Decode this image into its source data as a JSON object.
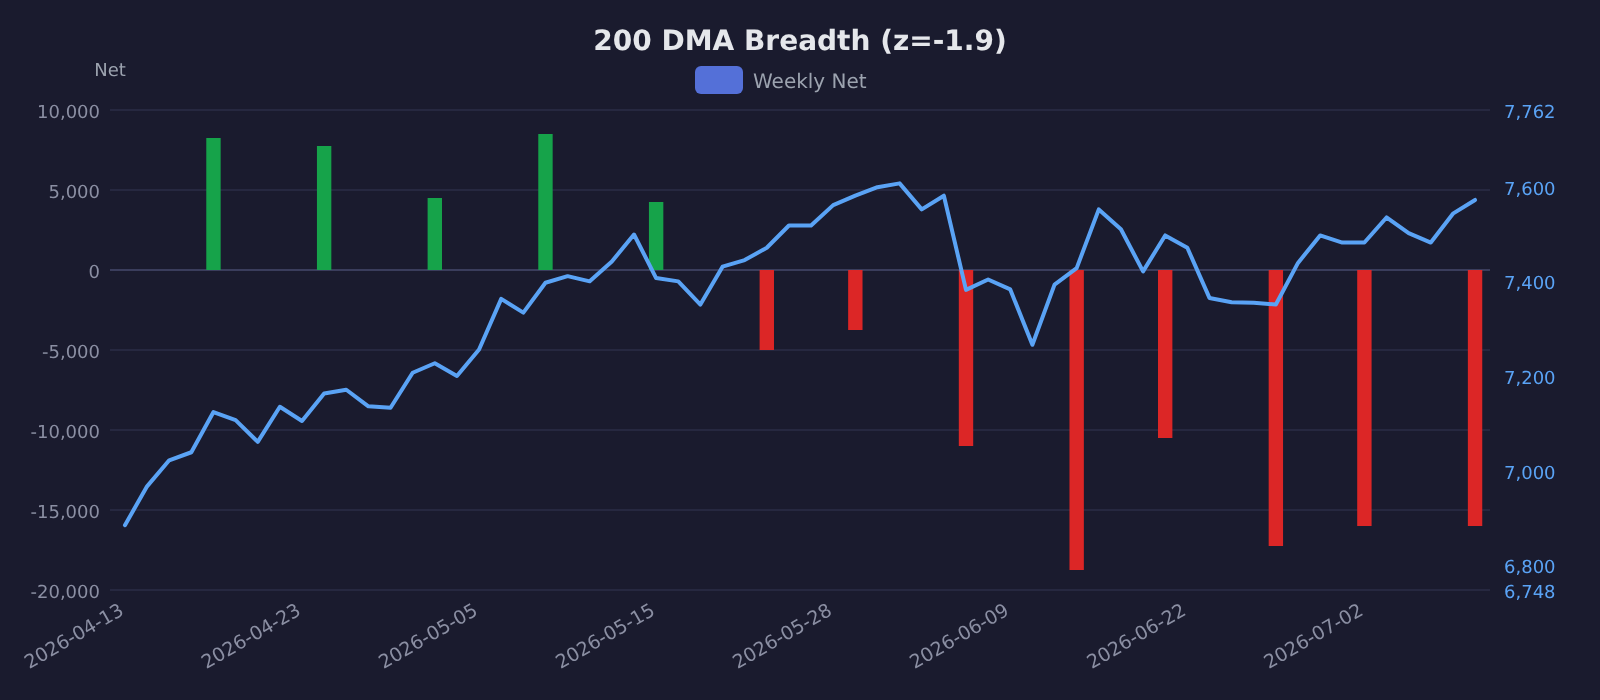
{
  "chart_data": {
    "type": "bar",
    "title": "200 DMA Breadth (z=-1.9)",
    "ylabel": "Net",
    "categories": [
      "2026-04-13",
      null,
      null,
      null,
      null,
      null,
      null,
      null,
      "2026-04-23",
      null,
      null,
      null,
      null,
      null,
      null,
      null,
      "2026-05-05",
      null,
      null,
      null,
      null,
      null,
      null,
      null,
      "2026-05-15",
      null,
      null,
      null,
      null,
      null,
      null,
      null,
      "2026-05-28",
      null,
      null,
      null,
      null,
      null,
      null,
      null,
      "2026-06-09",
      null,
      null,
      null,
      null,
      null,
      null,
      null,
      "2026-06-22",
      null,
      null,
      null,
      null,
      null,
      null,
      null,
      "2026-07-02",
      null,
      null,
      null,
      null,
      null
    ],
    "series": [
      {
        "name": "Weekly Net",
        "color": "#5470d8",
        "colors": [
          null,
          null,
          null,
          null,
          "#16a34a",
          null,
          null,
          null,
          null,
          "#16a34a",
          null,
          null,
          null,
          null,
          "#16a34a",
          null,
          null,
          null,
          null,
          "#16a34a",
          null,
          null,
          null,
          null,
          "#16a34a",
          null,
          null,
          null,
          null,
          "#dc2626",
          null,
          null,
          null,
          "#dc2626",
          null,
          null,
          null,
          null,
          "#dc2626",
          null,
          null,
          null,
          null,
          "#dc2626",
          null,
          null,
          null,
          "#dc2626",
          null,
          null,
          null,
          null,
          "#dc2626",
          null,
          null,
          null,
          "#dc2626",
          null,
          null,
          null,
          null,
          "#dc2626"
        ],
        "values": [
          null,
          null,
          null,
          null,
          8250,
          null,
          null,
          null,
          null,
          7750,
          null,
          null,
          null,
          null,
          4500,
          null,
          null,
          null,
          null,
          8500,
          null,
          null,
          null,
          null,
          4250,
          null,
          null,
          null,
          null,
          -5000,
          null,
          null,
          null,
          -3750,
          null,
          null,
          null,
          null,
          -11000,
          null,
          null,
          null,
          null,
          -18750,
          null,
          null,
          null,
          -10500,
          null,
          null,
          null,
          null,
          -17250,
          null,
          null,
          null,
          -16000,
          null,
          null,
          null,
          null,
          -16000
        ]
      },
      {
        "type": "line",
        "axis": "y2",
        "color": "#5aa3f5",
        "values": [
          6885,
          6967,
          7022,
          7039,
          7124,
          7107,
          7061,
          7135,
          7105,
          7163,
          7171,
          7136,
          7133,
          7207,
          7227,
          7200,
          7256,
          7363,
          7334,
          7397,
          7411,
          7400,
          7442,
          7499,
          7407,
          7400,
          7351,
          7431,
          7445,
          7471,
          7518,
          7518,
          7561,
          7581,
          7599,
          7607,
          7552,
          7581,
          7382,
          7404,
          7383,
          7266,
          7393,
          7428,
          7552,
          7510,
          7421,
          7497,
          7471,
          7365,
          7356,
          7355,
          7351,
          7439,
          7497,
          7482,
          7482,
          7535,
          7502,
          7482,
          7543,
          7572
        ]
      }
    ],
    "ylim": [
      -20000,
      10000
    ],
    "yticks": [
      {
        "value": -20000,
        "label": "-20,000"
      },
      {
        "value": -15000,
        "label": "-15,000"
      },
      {
        "value": -10000,
        "label": "-10,000"
      },
      {
        "value": -5000,
        "label": "-5,000"
      },
      0,
      {
        "value": 5000,
        "label": "5,000"
      },
      {
        "value": 10000,
        "label": "10,000"
      }
    ],
    "y2lim": [
      6748,
      7762
    ],
    "y2ticks": [
      {
        "value": 6748,
        "label": "6,748"
      },
      {
        "value": 6800,
        "label": "6,800"
      },
      {
        "value": 7000,
        "label": "7,000"
      },
      {
        "value": 7200,
        "label": "7,200"
      },
      {
        "value": 7400,
        "label": "7,400"
      },
      {
        "value": 7600,
        "label": "7,600"
      },
      {
        "value": 7762,
        "label": "7,762"
      }
    ],
    "grid": "y",
    "legend": "top"
  }
}
